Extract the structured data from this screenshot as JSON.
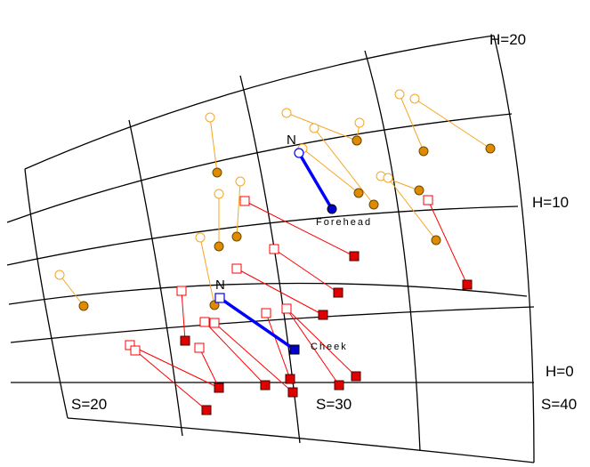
{
  "labels": {
    "h20": "H=20",
    "h10": "H=10",
    "h0": "H=0",
    "s20": "S=20",
    "s30": "S=30",
    "s40": "S=40",
    "forehead": "Forehead",
    "cheek": "Cheek",
    "north_forehead": "N",
    "north_cheek": "N"
  },
  "colors": {
    "grid": "#000000",
    "orange": "#f5a623",
    "orange_fill": "#e08a00",
    "red": "#ff0000",
    "red_fill": "#e00000",
    "blue": "#0000ff",
    "blue_fill": "#0000cc"
  },
  "legend": "none",
  "grid": true
}
